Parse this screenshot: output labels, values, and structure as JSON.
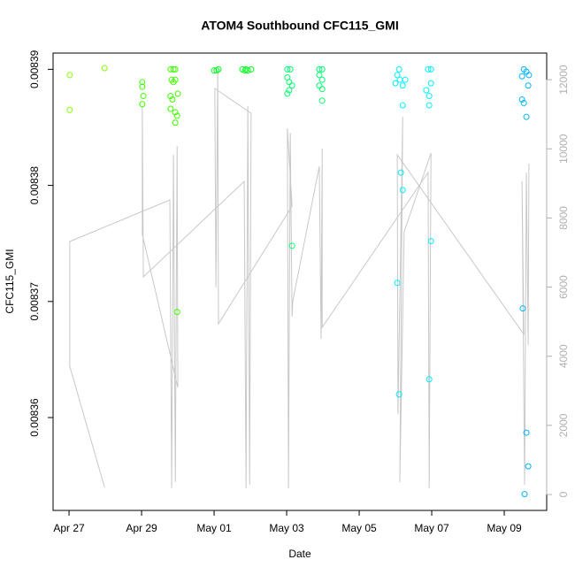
{
  "chart_data": {
    "type": "scatter",
    "title": "ATOM4 Southbound CFC115_GMI",
    "x_label": "Date",
    "y_label": "CFC115_GMI",
    "xlim": [
      -0.44,
      13.17
    ],
    "xticks": [
      {
        "value": 0,
        "label": "Apr 27"
      },
      {
        "value": 2,
        "label": "Apr 29"
      },
      {
        "value": 4,
        "label": "May 01"
      },
      {
        "value": 6,
        "label": "May 03"
      },
      {
        "value": 8,
        "label": "May 05"
      },
      {
        "value": 10,
        "label": "May 07"
      },
      {
        "value": 12,
        "label": "May 09"
      }
    ],
    "ylim": [
      0.008352,
      0.0083914
    ],
    "yticks": [
      0.00836,
      0.00837,
      0.00838,
      0.00839
    ],
    "y2lim": [
      -460,
      12770
    ],
    "y2ticks": [
      0,
      2000,
      4000,
      6000,
      8000,
      10000,
      12000
    ],
    "series": [
      {
        "color": "#80ff00",
        "x": [
          0.02,
          0.02,
          0.98
        ],
        "values": [
          0.0083895,
          0.0083865,
          0.0083901
        ]
      },
      {
        "color": "#40ff00",
        "x": [
          2.02,
          2.02,
          2.05,
          2.02,
          2.8,
          2.88,
          2.93,
          2.83,
          2.88,
          2.93,
          2.8,
          2.85,
          3.0,
          2.8,
          2.93,
          2.98,
          2.93,
          2.98
        ],
        "values": [
          0.0083889,
          0.0083885,
          0.0083877,
          0.008387,
          0.00839,
          0.00839,
          0.00839,
          0.0083891,
          0.0083889,
          0.0083891,
          0.0083877,
          0.0083874,
          0.0083879,
          0.0083866,
          0.0083863,
          0.008386,
          0.0083854,
          0.0083691
        ]
      },
      {
        "color": "#00ff20",
        "x": [
          4.0,
          4.07,
          4.12,
          4.78,
          4.85,
          4.88,
          4.93,
          5.02
        ],
        "values": [
          0.0083899,
          0.0083899,
          0.00839,
          0.00839,
          0.0083899,
          0.00839,
          0.0083899,
          0.00839
        ]
      },
      {
        "color": "#00ff70",
        "x": [
          6.02,
          6.1,
          6.02,
          6.07,
          6.15,
          6.07,
          6.02,
          6.15,
          6.9,
          6.98,
          6.9,
          6.98,
          6.9,
          6.98,
          6.98
        ],
        "values": [
          0.00839,
          0.00839,
          0.0083893,
          0.0083889,
          0.0083886,
          0.0083882,
          0.0083879,
          0.0083748,
          0.00839,
          0.00839,
          0.0083895,
          0.0083891,
          0.0083886,
          0.0083883,
          0.0083873
        ]
      },
      {
        "color": "#00f0ff",
        "x": [
          9.1,
          9.05,
          9.12,
          9.2,
          9.0,
          9.27,
          9.2,
          9.15,
          9.2,
          9.05,
          9.1,
          9.9,
          9.98,
          9.85,
          9.98,
          9.93,
          9.93,
          9.98,
          9.93
        ],
        "values": [
          0.00839,
          0.0083895,
          0.0083891,
          0.0083886,
          0.0083888,
          0.0083891,
          0.0083869,
          0.0083811,
          0.0083796,
          0.0083716,
          0.008362,
          0.00839,
          0.00839,
          0.0083882,
          0.0083888,
          0.0083877,
          0.0083869,
          0.0083752,
          0.0083633
        ]
      },
      {
        "color": "#00b4ff",
        "x": [
          12.54,
          12.61,
          12.49,
          12.68,
          12.66,
          12.49,
          12.54,
          12.61,
          12.51,
          12.61,
          12.66,
          12.56
        ],
        "values": [
          0.00839,
          0.0083898,
          0.0083894,
          0.0083895,
          0.0083886,
          0.0083874,
          0.0083871,
          0.0083859,
          0.0083694,
          0.0083587,
          0.0083558,
          0.0083534
        ]
      }
    ],
    "line": {
      "axis": "y2",
      "color": "#c8c8c8",
      "x": [
        0.98,
        0.02,
        0.02,
        2.78,
        2.83,
        2.88,
        2.93,
        2.98,
        3.0,
        2.02,
        2.02,
        2.05,
        4.83,
        4.88,
        4.93,
        4.98,
        5.02,
        4.02,
        4.05,
        4.1,
        4.12,
        6.15,
        6.02,
        6.05,
        6.1,
        6.15,
        6.17,
        6.9,
        6.95,
        6.98,
        6.98,
        9.9,
        9.93,
        9.98,
        9.24,
        9.12,
        9.2,
        9.07,
        9.05,
        12.54,
        12.49,
        12.56,
        12.61,
        12.66,
        12.68
      ],
      "values": [
        205,
        3711,
        7319,
        8521,
        179,
        9827,
        358,
        10083,
        3096,
        7523,
        11234,
        6295,
        9059,
        179,
        11234,
        281,
        11029,
        11746,
        5988,
        12258,
        4939,
        8342,
        10594,
        179,
        10466,
        5144,
        5604,
        9494,
        4504,
        10006,
        4837,
        9315,
        179,
        9878,
        7600,
        358,
        10927,
        2329,
        9827,
        4632,
        9059,
        281,
        9315,
        4325,
        9571
      ]
    }
  }
}
